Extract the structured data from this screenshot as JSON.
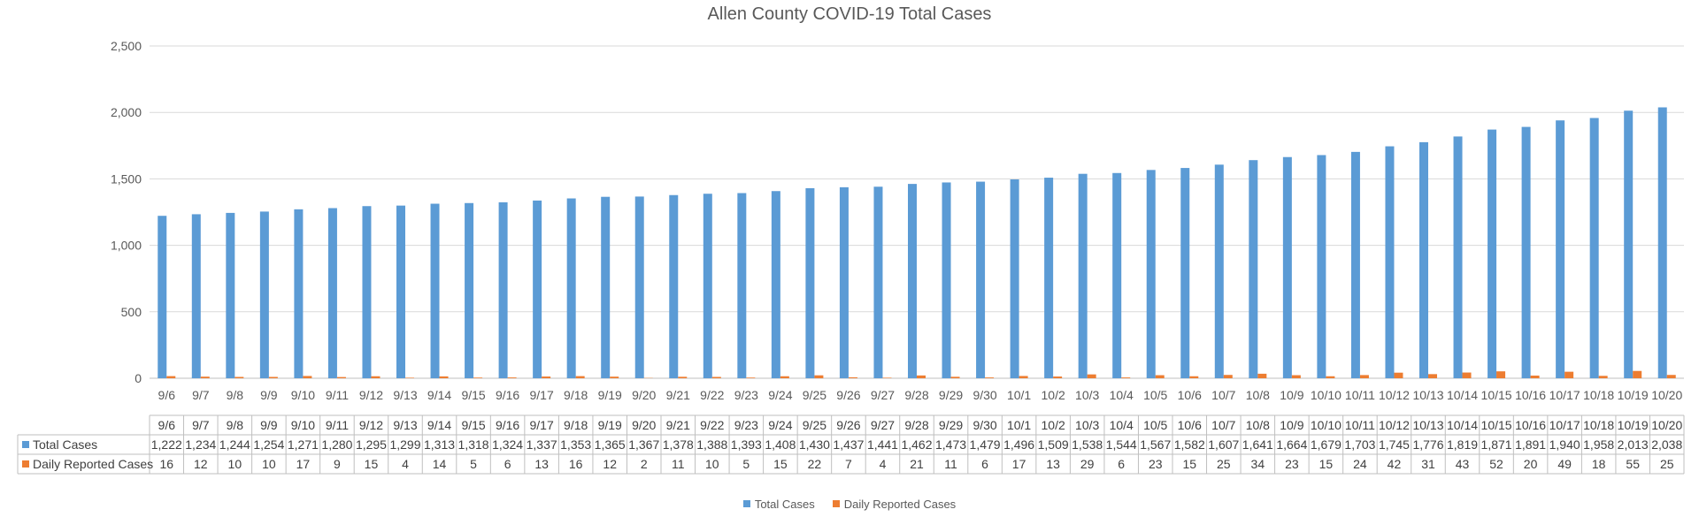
{
  "chart_data": {
    "type": "bar",
    "title": "Allen County COVID-19 Total Cases",
    "categories": [
      "9/6",
      "9/7",
      "9/8",
      "9/9",
      "9/10",
      "9/11",
      "9/12",
      "9/13",
      "9/14",
      "9/15",
      "9/16",
      "9/17",
      "9/18",
      "9/19",
      "9/20",
      "9/21",
      "9/22",
      "9/23",
      "9/24",
      "9/25",
      "9/26",
      "9/27",
      "9/28",
      "9/29",
      "9/30",
      "10/1",
      "10/2",
      "10/3",
      "10/4",
      "10/5",
      "10/6",
      "10/7",
      "10/8",
      "10/9",
      "10/10",
      "10/11",
      "10/12",
      "10/13",
      "10/14",
      "10/15",
      "10/16",
      "10/17",
      "10/18",
      "10/19",
      "10/20"
    ],
    "series": [
      {
        "name": "Total Cases",
        "color": "#5B9BD5",
        "values": [
          1222,
          1234,
          1244,
          1254,
          1271,
          1280,
          1295,
          1299,
          1313,
          1318,
          1324,
          1337,
          1353,
          1365,
          1367,
          1378,
          1388,
          1393,
          1408,
          1430,
          1437,
          1441,
          1462,
          1473,
          1479,
          1496,
          1509,
          1538,
          1544,
          1567,
          1582,
          1607,
          1641,
          1664,
          1679,
          1703,
          1745,
          1776,
          1819,
          1871,
          1891,
          1940,
          1958,
          2013,
          2038
        ]
      },
      {
        "name": "Daily Reported Cases",
        "color": "#ED7D31",
        "values": [
          16,
          12,
          10,
          10,
          17,
          9,
          15,
          4,
          14,
          5,
          6,
          13,
          16,
          12,
          2,
          11,
          10,
          5,
          15,
          22,
          7,
          4,
          21,
          11,
          6,
          17,
          13,
          29,
          6,
          23,
          15,
          25,
          34,
          23,
          15,
          24,
          42,
          31,
          43,
          52,
          20,
          49,
          18,
          55,
          25
        ]
      }
    ],
    "ylim": [
      0,
      2500
    ],
    "yticks": [
      0,
      500,
      1000,
      1500,
      2000,
      2500
    ],
    "grid": true,
    "legend": "bottom",
    "data_table": true
  }
}
